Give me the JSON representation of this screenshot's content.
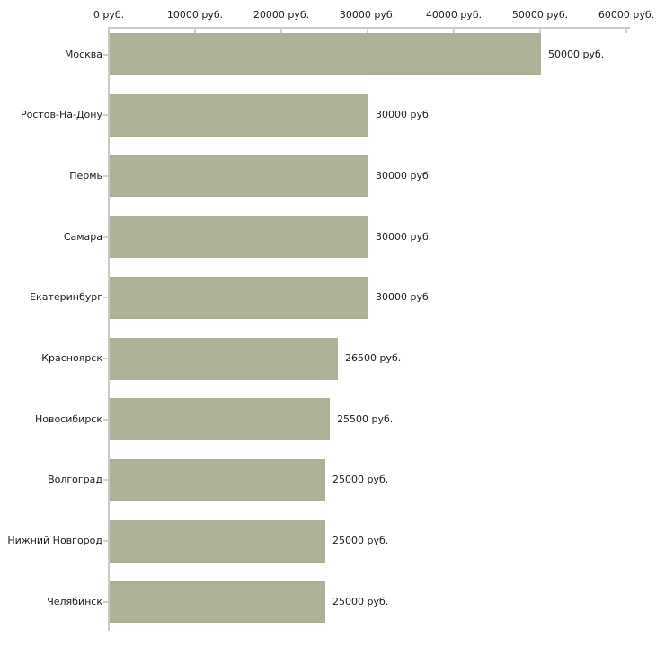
{
  "chart_data": {
    "type": "bar",
    "orientation": "horizontal",
    "unit": "руб.",
    "xlim": [
      0,
      60000
    ],
    "x_ticks": [
      0,
      10000,
      20000,
      30000,
      40000,
      50000,
      60000
    ],
    "x_tick_labels": [
      "0 руб.",
      "10000 руб.",
      "20000 руб.",
      "30000 руб.",
      "40000 руб.",
      "50000 руб.",
      "60000 руб."
    ],
    "categories": [
      "Москва",
      "Ростов-На-Дону",
      "Пермь",
      "Самара",
      "Екатеринбург",
      "Красноярск",
      "Новосибирск",
      "Волгоград",
      "Нижний Новгород",
      "Челябинск"
    ],
    "values": [
      50000,
      30000,
      30000,
      30000,
      30000,
      26500,
      25500,
      25000,
      25000,
      25000
    ],
    "value_labels": [
      "50000 руб.",
      "30000 руб.",
      "30000 руб.",
      "30000 руб.",
      "30000 руб.",
      "26500 руб.",
      "25500 руб.",
      "25000 руб.",
      "25000 руб.",
      "25000 руб."
    ],
    "grid": false,
    "legend": false,
    "colors": {
      "bar": "#acb298",
      "axis_line": "#c9c9c9",
      "tick": "#d8d3ac",
      "text": "#1c1c1c",
      "background": "#ffffff"
    }
  }
}
